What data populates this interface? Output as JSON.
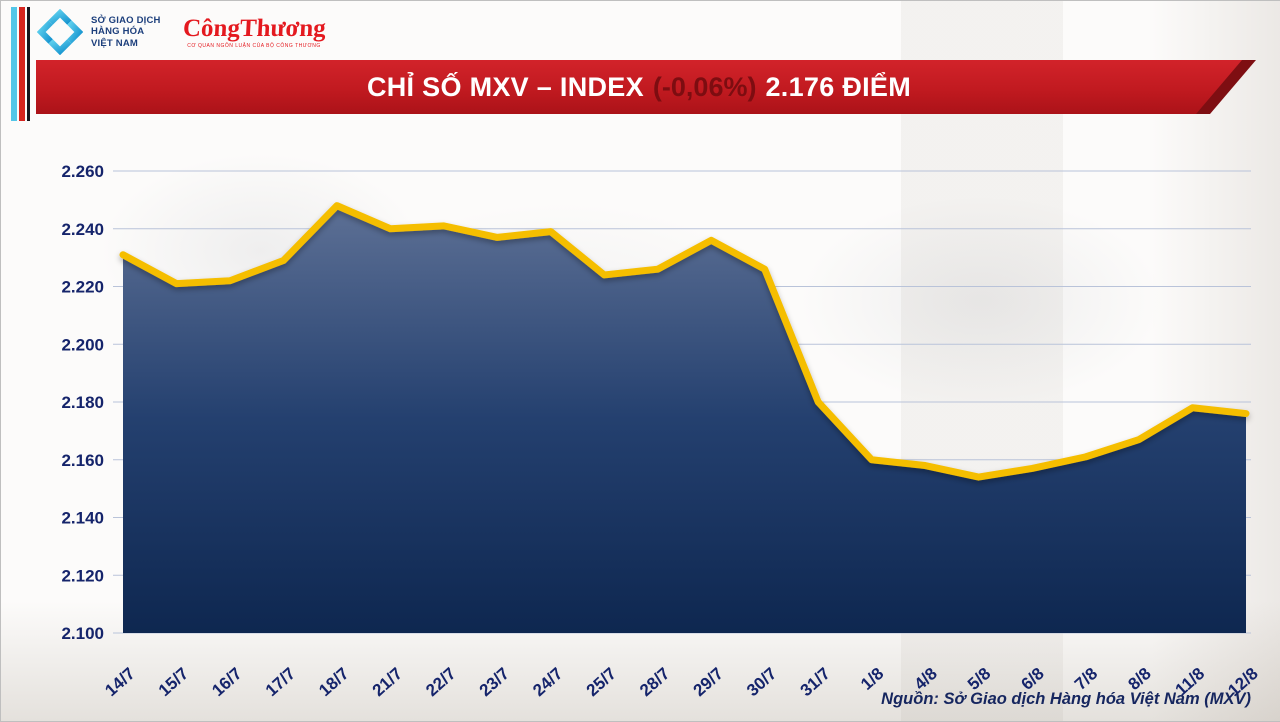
{
  "colors": {
    "banner_red": "#c11a20",
    "banner_dark_red": "#7e0e12",
    "banner_change_text": "#7d0d11",
    "line_gold": "#F5BE00",
    "navy_text": "#15246b",
    "logo_cyan": "#2fb9e2",
    "paper_red": "#e4191f"
  },
  "logo": {
    "org_lines": [
      "SỞ GIAO DỊCH",
      "HÀNG HÓA",
      "VIỆT NAM"
    ],
    "paper_name": "CôngThương",
    "paper_tagline": "CƠ QUAN NGÔN LUẬN CỦA BỘ CÔNG THƯƠNG"
  },
  "banner": {
    "title_prefix": "CHỈ SỐ MXV – INDEX",
    "change": "(-0,06%)",
    "title_suffix": "2.176 ĐIỂM"
  },
  "chart_data": {
    "type": "area",
    "title": "CHỈ SỐ MXV – INDEX (-0,06%) 2.176 ĐIỂM",
    "x": [
      "14/7",
      "15/7",
      "16/7",
      "17/7",
      "18/7",
      "21/7",
      "22/7",
      "23/7",
      "24/7",
      "25/7",
      "28/7",
      "29/7",
      "30/7",
      "31/7",
      "1/8",
      "4/8",
      "5/8",
      "6/8",
      "7/8",
      "8/8",
      "11/8",
      "12/8"
    ],
    "values": [
      2231,
      2221,
      2222,
      2229,
      2248,
      2240,
      2241,
      2237,
      2239,
      2224,
      2226,
      2236,
      2226,
      2180,
      2160,
      2158,
      2154,
      2157,
      2161,
      2167,
      2178,
      2176
    ],
    "ylim": [
      2100,
      2260
    ],
    "yticks": [
      {
        "value": 2100,
        "label": "2.100"
      },
      {
        "value": 2120,
        "label": "2.120"
      },
      {
        "value": 2140,
        "label": "2.140"
      },
      {
        "value": 2160,
        "label": "2.160"
      },
      {
        "value": 2180,
        "label": "2.180"
      },
      {
        "value": 2200,
        "label": "2.200"
      },
      {
        "value": 2220,
        "label": "2.220"
      },
      {
        "value": 2240,
        "label": "2.240"
      },
      {
        "value": 2260,
        "label": "2.260"
      }
    ],
    "grid": true,
    "legend": "none",
    "line_color": "#F5BE00",
    "area_top_color": "#5d7095",
    "area_mid_color": "#24406f",
    "area_bottom_color": "#0e2750",
    "label_color": "#15246b"
  },
  "footer": {
    "source": "Nguồn: Sở Giao dịch Hàng hóa Việt Nam (MXV)"
  }
}
